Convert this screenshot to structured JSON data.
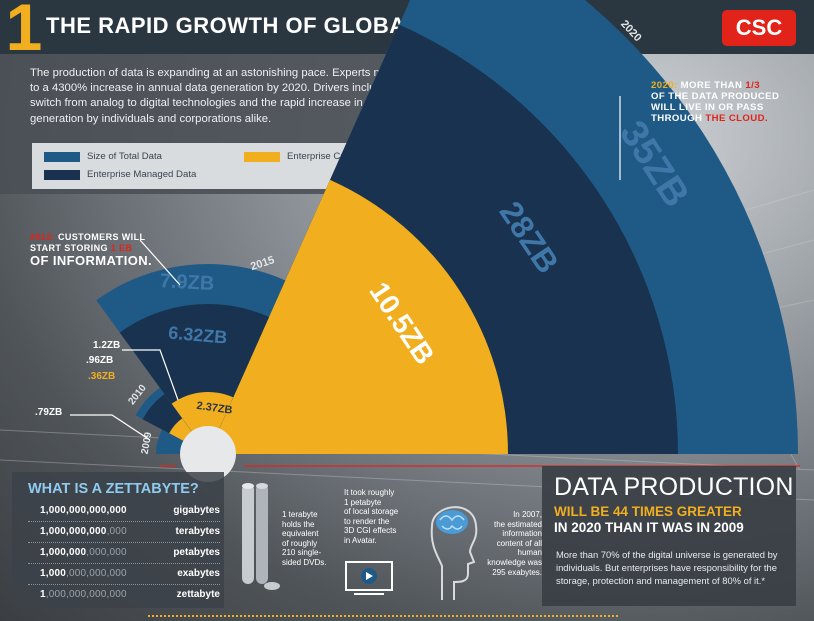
{
  "header": {
    "number": "1",
    "title": "THE RAPID GROWTH OF GLOBAL DATA",
    "logo": "CSC"
  },
  "intro": {
    "text": "The production of data is expanding at an astonishing pace. Experts now point to a 4300% increase in annual data generation by 2020. Drivers include the switch from analog to digital technologies and the rapid increase in data generation by individuals and corporations alike."
  },
  "legend": {
    "total": "Size of Total Data",
    "managed": "Enterprise Managed Data",
    "created": "Enterprise Created Data"
  },
  "colors": {
    "total": "#1f5a86",
    "managed": "#19324f",
    "created": "#f1ae1f",
    "accent_red": "#e2231a",
    "header": "#2b3740"
  },
  "callouts": {
    "cloud": {
      "year": "2020:",
      "line1_a": "MORE THAN",
      "fraction": "1/3",
      "line2": "OF THE DATA PRODUCED",
      "line3": "WILL LIVE IN OR PASS",
      "line4_a": "THROUGH",
      "line4_b": "THE CLOUD."
    },
    "eb": {
      "year": "2012:",
      "line1_a": "CUSTOMERS WILL",
      "line2_a": "START STORING",
      "line2_b": "1 EB",
      "line3": "OF INFORMATION."
    }
  },
  "chart_data": {
    "type": "radial-sector",
    "series": [
      {
        "name": "Size of Total Data",
        "values": [
          0.79,
          1.2,
          7.9,
          35
        ]
      },
      {
        "name": "Enterprise Managed Data",
        "values": [
          null,
          0.96,
          6.32,
          28
        ]
      },
      {
        "name": "Enterprise Created Data",
        "values": [
          null,
          0.36,
          2.37,
          10.5
        ]
      }
    ],
    "categories": [
      "2009",
      "2010",
      "2015",
      "2020"
    ],
    "labels": {
      "y2009_total": ".79ZB",
      "y2010_total": "1.2ZB",
      "y2010_managed": ".96ZB",
      "y2010_created": ".36ZB",
      "y2015_total": "7.9ZB",
      "y2015_managed": "6.32ZB",
      "y2015_created": "2.37ZB",
      "y2020_total": "35ZB",
      "y2020_managed": "28ZB",
      "y2020_created": "10.5ZB"
    }
  },
  "zettabyte": {
    "title": "WHAT IS A ZETTABYTE?",
    "rows": [
      {
        "bright": "1,000,000,000,000",
        "dim": "",
        "unit": "gigabytes"
      },
      {
        "bright": "1,000,000,000",
        "dim": ",000",
        "unit": "terabytes"
      },
      {
        "bright": "1,000,000",
        "dim": ",000,000",
        "unit": "petabytes"
      },
      {
        "bright": "1,000",
        "dim": ",000,000,000",
        "unit": "exabytes"
      },
      {
        "bright": "1",
        "dim": ",000,000,000,000",
        "unit": "zettabyte"
      }
    ]
  },
  "facts": {
    "dvd": [
      "1 terabyte",
      "holds the",
      "equivalent",
      "of roughly",
      "210 single-",
      "sided DVDs."
    ],
    "avatar": [
      "It took roughly",
      "1 petabyte",
      "of local storage",
      "to render the",
      "3D CGI effects",
      "in Avatar."
    ],
    "brain": [
      "In 2007,",
      "the estimated",
      "information",
      "content of all",
      "human",
      "knowledge was",
      "295 exabytes."
    ]
  },
  "data_production": {
    "title": "DATA PRODUCTION",
    "subtitle1": "WILL BE 44 TIMES GREATER",
    "subtitle2": "IN 2020 THAN IT WAS IN 2009",
    "body": "More than 70% of the digital universe is generated by individuals. But enterprises have responsibility for the storage, protection and management of 80% of it.*"
  }
}
